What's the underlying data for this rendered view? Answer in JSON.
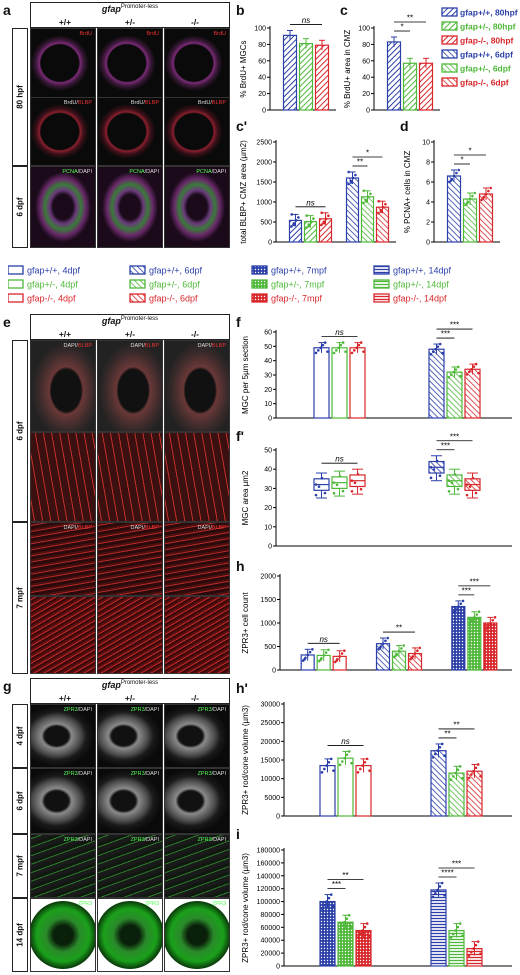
{
  "header_a": {
    "gene": "gfap",
    "sup": "Promoter-less",
    "genotypes": [
      "+/+",
      "+/-",
      "-/-"
    ]
  },
  "header_e": {
    "gene": "gfap",
    "sup": "Promoter-less",
    "genotypes": [
      "+/+",
      "+/-",
      "-/-"
    ]
  },
  "header_g": {
    "gene": "gfap",
    "sup": "Promoter-less",
    "genotypes": [
      "+/+",
      "+/-",
      "-/-"
    ]
  },
  "panel_letters": {
    "a": "a",
    "b": "b",
    "c": "c",
    "c2": "c'",
    "d": "d",
    "e": "e",
    "f": "f",
    "f2": "f'",
    "g": "g",
    "h": "h",
    "h2": "h'",
    "i": "i"
  },
  "rows_a": [
    "80 hpf",
    "6 dpf"
  ],
  "rows_e": [
    "6 dpf",
    "7 mpf"
  ],
  "rows_g": [
    "4 dpf",
    "6 dpf",
    "7 mpf",
    "14 dpf"
  ],
  "tags": {
    "brdu": "BrdU",
    "brdu_blbp_1": "BrdU/",
    "brdu_blbp_2": "BLBP",
    "pcna_1": "PCNA",
    "pcna_2": "/DAPI",
    "dapi_blbp_1": "DAPI/",
    "dapi_blbp_2": "BLBP",
    "zpr3_1": "ZPR3",
    "zpr3_2": "/DAPI",
    "zpr3_only": "ZPR3"
  },
  "colors": {
    "wt": "#2b3fa8",
    "het": "#4fb83a",
    "mut": "#d8272b"
  },
  "legend_top": [
    {
      "label": "gfap+/+, 80hpf",
      "color": "#2b3fa8",
      "pattern": "hatch"
    },
    {
      "label": "gfap+/-, 80hpf",
      "color": "#4fb83a",
      "pattern": "hatch"
    },
    {
      "label": "gfap-/-, 80hpf",
      "color": "#d8272b",
      "pattern": "hatch"
    },
    {
      "label": "gfap+/+, 6dpf",
      "color": "#2b3fa8",
      "pattern": "hatch2"
    },
    {
      "label": "gfap+/-, 6dpf",
      "color": "#4fb83a",
      "pattern": "hatch2"
    },
    {
      "label": "gfap-/-, 6dpf",
      "color": "#d8272b",
      "pattern": "hatch2"
    }
  ],
  "legend_mid": [
    [
      {
        "label": "gfap+/+, 4dpf",
        "color": "#2b3fa8",
        "pattern": "open"
      },
      {
        "label": "gfap+/-, 4dpf",
        "color": "#4fb83a",
        "pattern": "open"
      },
      {
        "label": "gfap-/-, 4dpf",
        "color": "#d8272b",
        "pattern": "open"
      }
    ],
    [
      {
        "label": "gfap+/+, 6dpf",
        "color": "#2b3fa8",
        "pattern": "hatch2"
      },
      {
        "label": "gfap+/-, 6dpf",
        "color": "#4fb83a",
        "pattern": "hatch2"
      },
      {
        "label": "gfap-/-, 6dpf",
        "color": "#d8272b",
        "pattern": "hatch2"
      }
    ],
    [
      {
        "label": "gfap+/+, 7mpf",
        "color": "#2b3fa8",
        "pattern": "dots"
      },
      {
        "label": "gfap+/-, 7mpf",
        "color": "#4fb83a",
        "pattern": "dots"
      },
      {
        "label": "gfap-/-, 7mpf",
        "color": "#d8272b",
        "pattern": "dots"
      }
    ],
    [
      {
        "label": "gfap+/+, 14dpf",
        "color": "#2b3fa8",
        "pattern": "horiz"
      },
      {
        "label": "gfap+/-, 14dpf",
        "color": "#4fb83a",
        "pattern": "horiz"
      },
      {
        "label": "gfap-/-, 14dpf",
        "color": "#d8272b",
        "pattern": "horiz"
      }
    ]
  ],
  "chart_data": [
    {
      "id": "b",
      "type": "bar",
      "ylabel": "% BrdU+ MGCs",
      "ylim": [
        0,
        100
      ],
      "yticks": [
        0,
        20,
        40,
        60,
        80,
        100
      ],
      "groups": [
        {
          "label": "80hpf",
          "values": [
            91,
            81,
            79
          ]
        }
      ],
      "sig": [
        {
          "text": "ns"
        }
      ]
    },
    {
      "id": "c",
      "type": "bar",
      "ylabel": "% BrdU+ area in CMZ",
      "ylim": [
        0,
        100
      ],
      "yticks": [
        0,
        20,
        40,
        60,
        80,
        100
      ],
      "groups": [
        {
          "label": "80hpf",
          "values": [
            83,
            57,
            57
          ]
        }
      ],
      "sig": [
        {
          "text": "*"
        },
        {
          "text": "**"
        }
      ]
    },
    {
      "id": "c2",
      "type": "bar",
      "ylabel": "total BLBP+ CMZ area (µm2)",
      "ylim": [
        0,
        2500
      ],
      "yticks": [
        0,
        500,
        1000,
        1500,
        2000,
        2500
      ],
      "groups": [
        {
          "label": "80hpf",
          "values": [
            540,
            510,
            580
          ]
        },
        {
          "label": "6dpf",
          "values": [
            1600,
            1130,
            870
          ]
        }
      ],
      "sig": [
        {
          "text": "ns"
        },
        {
          "text": "**"
        },
        {
          "text": "*"
        }
      ]
    },
    {
      "id": "d",
      "type": "bar",
      "ylabel": "% PCNA+ cells in CMZ",
      "ylim": [
        0,
        10
      ],
      "yticks": [
        0,
        2,
        4,
        6,
        8,
        10
      ],
      "groups": [
        {
          "label": "6dpf",
          "values": [
            6.6,
            4.3,
            4.8
          ]
        }
      ],
      "sig": [
        {
          "text": "*"
        },
        {
          "text": "*"
        }
      ]
    },
    {
      "id": "f",
      "type": "bar",
      "ylabel": "MGC per 5µm section",
      "ylim": [
        0,
        60
      ],
      "yticks": [
        0,
        10,
        20,
        30,
        40,
        50,
        60
      ],
      "groups": [
        {
          "label": "4dpf",
          "values": [
            49,
            49,
            49
          ]
        },
        {
          "label": "6dpf",
          "values": [
            48,
            32,
            34
          ]
        }
      ],
      "sig": [
        {
          "text": "ns"
        },
        {
          "text": "***"
        },
        {
          "text": "***"
        }
      ]
    },
    {
      "id": "f2",
      "type": "box",
      "ylabel": "MGC area µm2",
      "ylim": [
        0,
        50
      ],
      "yticks": [
        0,
        10,
        20,
        30,
        40,
        50
      ],
      "groups": [
        {
          "label": "4dpf",
          "medians": [
            32,
            33,
            34
          ]
        },
        {
          "label": "6dpf",
          "medians": [
            41,
            34,
            32
          ]
        }
      ],
      "sig": [
        {
          "text": "ns"
        },
        {
          "text": "***"
        },
        {
          "text": "***"
        }
      ]
    },
    {
      "id": "h",
      "type": "bar",
      "ylabel": "ZPR3+ cell count",
      "ylim": [
        0,
        2000
      ],
      "yticks": [
        0,
        500,
        1000,
        1500,
        2000
      ],
      "groups": [
        {
          "label": "4dpf",
          "values": [
            320,
            310,
            290
          ]
        },
        {
          "label": "6dpf",
          "values": [
            560,
            400,
            350
          ]
        },
        {
          "label": "7mpf",
          "values": [
            1350,
            1120,
            1000
          ]
        }
      ],
      "sig": [
        {
          "text": "ns"
        },
        {
          "text": "**"
        },
        {
          "text": "***"
        },
        {
          "text": "***"
        },
        {
          "text": "**"
        }
      ]
    },
    {
      "id": "h2",
      "type": "bar",
      "ylabel": "ZPR3+ rod/cone volume (µm3)",
      "ylim": [
        0,
        30000
      ],
      "yticks": [
        0,
        5000,
        10000,
        15000,
        20000,
        25000,
        30000
      ],
      "groups": [
        {
          "label": "4dpf",
          "values": [
            13500,
            15500,
            13500
          ]
        },
        {
          "label": "6dpf",
          "values": [
            17500,
            11500,
            12000
          ]
        }
      ],
      "sig": [
        {
          "text": "ns"
        },
        {
          "text": "**"
        },
        {
          "text": "**"
        }
      ]
    },
    {
      "id": "i",
      "type": "bar",
      "ylabel": "ZPR3+ rod/cone volume (µm3)",
      "ylim": [
        0,
        180000
      ],
      "yticks": [
        0,
        20000,
        40000,
        60000,
        80000,
        100000,
        120000,
        140000,
        160000,
        180000
      ],
      "groups": [
        {
          "label": "7mpf",
          "values": [
            100000,
            68000,
            55000
          ]
        },
        {
          "label": "14dpf",
          "values": [
            118000,
            55000,
            27000
          ]
        }
      ],
      "sig": [
        {
          "text": "***"
        },
        {
          "text": "**"
        },
        {
          "text": "****"
        },
        {
          "text": "***"
        }
      ]
    }
  ]
}
